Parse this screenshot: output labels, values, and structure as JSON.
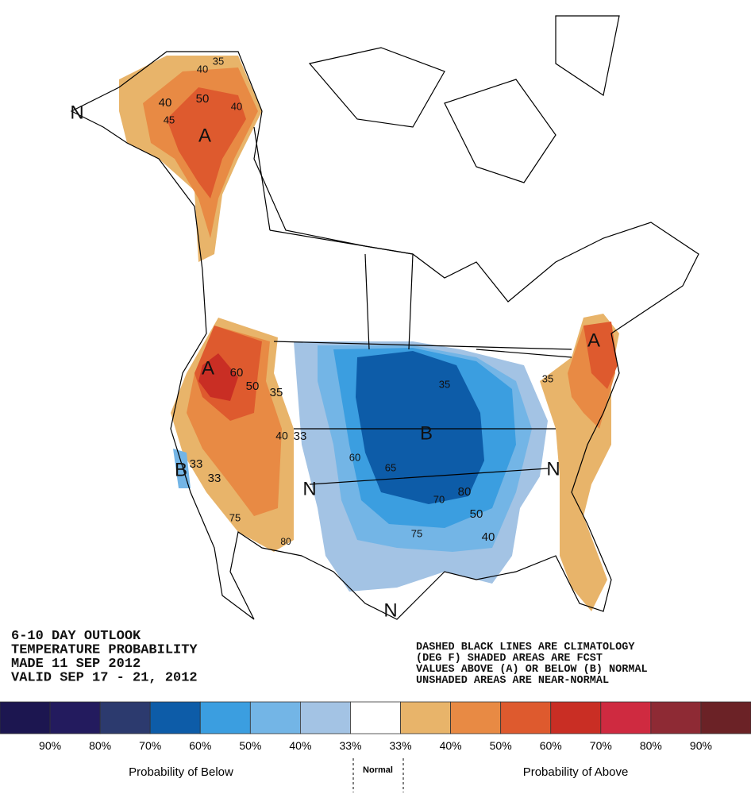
{
  "outlook": {
    "lines": [
      "6-10 DAY OUTLOOK",
      "TEMPERATURE PROBABILITY",
      "MADE  11 SEP 2012",
      "VALID  SEP 17 - 21, 2012"
    ]
  },
  "notes": {
    "lines": [
      "DASHED BLACK LINES ARE CLIMATOLOGY",
      "(DEG F) SHADED AREAS ARE FCST",
      "VALUES ABOVE (A) OR BELOW (B) NORMAL",
      "UNSHADED AREAS ARE NEAR-NORMAL"
    ]
  },
  "map_labels": [
    "35",
    "40",
    "40",
    "50",
    "40",
    "45",
    "A",
    "N",
    "A",
    "60",
    "50",
    "35",
    "40",
    "33",
    "33",
    "B",
    "33",
    "75",
    "80",
    "N",
    "35",
    "B",
    "60",
    "65",
    "70",
    "80",
    "50",
    "40",
    "75",
    "N",
    "A",
    "35",
    "N"
  ],
  "legend": {
    "colors": [
      "#1c1650",
      "#231b5e",
      "#2c3a6e",
      "#0d5ca8",
      "#3b9ee0",
      "#73b5e6",
      "#a3c3e4",
      "#ffffff",
      "#e8b46a",
      "#e88a44",
      "#de5a2e",
      "#c92e24",
      "#cf2a40",
      "#8e2a34",
      "#6b2226"
    ],
    "labels": [
      "90%",
      "80%",
      "70%",
      "60%",
      "50%",
      "40%",
      "33%",
      "33%",
      "40%",
      "50%",
      "60%",
      "70%",
      "80%",
      "90%"
    ],
    "below": "Probability of Below",
    "normal": "Normal",
    "above": "Probability of Above"
  }
}
